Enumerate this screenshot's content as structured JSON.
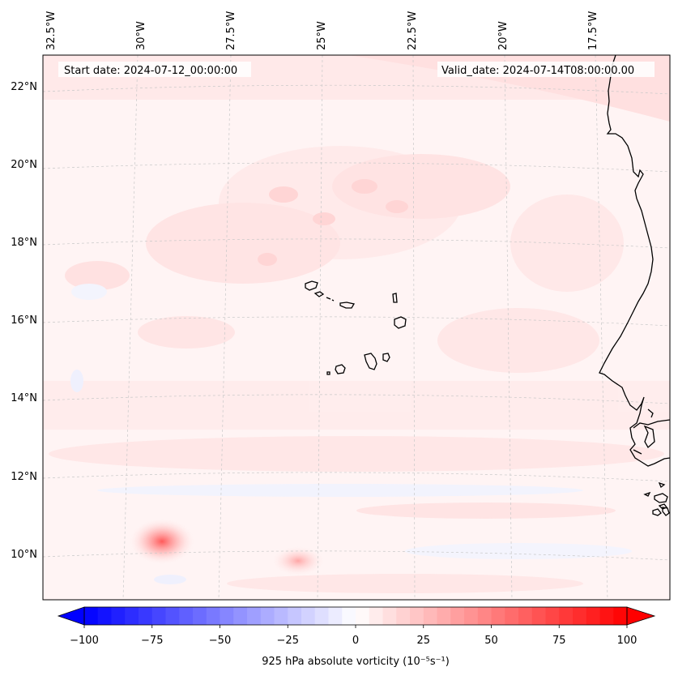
{
  "map": {
    "start_date": "Start date: 2024-07-12_00:00:00",
    "valid_date": "Valid_date: 2024-07-14T08:00:00.00",
    "lon_labels": [
      "32.5°W",
      "30°W",
      "27.5°W",
      "25°W",
      "22.5°W",
      "20°W",
      "17.5°W"
    ],
    "lat_labels": [
      "22°N",
      "20°N",
      "18°N",
      "16°N",
      "14°N",
      "12°N",
      "10°N"
    ],
    "gridlines": true,
    "features": [
      "Cape Verde islands",
      "West African coastline"
    ]
  },
  "colorbar": {
    "label": "925 hPa absolute vorticity (10⁻⁵s⁻¹)",
    "ticks": [
      "−100",
      "−75",
      "−50",
      "−25",
      "0",
      "25",
      "50",
      "75",
      "100"
    ],
    "range": [
      -100,
      100
    ],
    "colormap": "bwr",
    "colors": {
      "negative": "#0000ff",
      "zero": "#ffffff",
      "positive": "#ff0000"
    }
  }
}
